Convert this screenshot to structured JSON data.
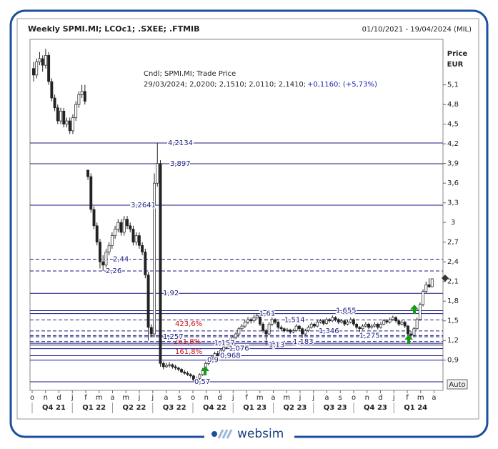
{
  "header": {
    "title": "Weekly SPMI.MI; LCOc1; .SXEE; .FTMIB",
    "range": "01/10/2021 - 19/04/2024 (MIL)"
  },
  "info": {
    "line1": "Cndl; SPMI.MI; Trade Price",
    "line2": "29/03/2024; 2,0200; 2,1510; 2,0110; 2,1410;",
    "change": "+0,1160; (+5,73%)"
  },
  "auto_button": "Auto",
  "footer": {
    "logo": "websim"
  },
  "chart_data": {
    "type": "candlestick",
    "ylabel": "Price",
    "yunit": "EUR",
    "categories": [
      "o",
      "n",
      "d",
      "j",
      "f",
      "m",
      "a",
      "m",
      "j",
      "j",
      "a",
      "s",
      "o",
      "n",
      "d",
      "j",
      "f",
      "m",
      "a",
      "m",
      "j",
      "j",
      "a",
      "s",
      "o",
      "n",
      "d",
      "j",
      "f",
      "m",
      "a"
    ],
    "quarters": [
      "Q4 21",
      "Q1 22",
      "Q2 22",
      "Q3 22",
      "Q4 22",
      "Q1 23",
      "Q2 23",
      "Q3 23",
      "Q4 23",
      "Q1 24"
    ],
    "ylim": [
      0.45,
      5.74
    ],
    "yticks": [
      {
        "value": 0.9,
        "label": "0,9"
      },
      {
        "value": 1.2,
        "label": "1,2"
      },
      {
        "value": 1.5,
        "label": "1,5"
      },
      {
        "value": 1.8,
        "label": "1,8"
      },
      {
        "value": 2.1,
        "label": "2,1"
      },
      {
        "value": 2.4,
        "label": "2,4"
      },
      {
        "value": 2.7,
        "label": "2,7"
      },
      3,
      {
        "value": 3.3,
        "label": "3,3"
      },
      {
        "value": 3.6,
        "label": "3,6"
      },
      {
        "value": 3.9,
        "label": "3,9"
      },
      {
        "value": 4.2,
        "label": "4,2"
      },
      {
        "value": 4.5,
        "label": "4,5"
      },
      {
        "value": 4.8,
        "label": "4,8"
      },
      {
        "value": 5.1,
        "label": "5,1"
      }
    ],
    "up_color": "#ffffff",
    "down_color": "#222222",
    "ohlc": [
      [
        5.35,
        5.45,
        5.15,
        5.25
      ],
      [
        5.25,
        5.5,
        5.2,
        5.45
      ],
      [
        5.45,
        5.6,
        5.4,
        5.5
      ],
      [
        5.5,
        5.55,
        5.3,
        5.4
      ],
      [
        5.4,
        5.65,
        5.35,
        5.55
      ],
      [
        5.55,
        5.6,
        5.1,
        5.15
      ],
      [
        5.15,
        5.2,
        4.85,
        4.9
      ],
      [
        4.9,
        4.95,
        4.7,
        4.75
      ],
      [
        4.75,
        4.8,
        4.5,
        4.55
      ],
      [
        4.55,
        4.75,
        4.5,
        4.7
      ],
      [
        4.7,
        4.75,
        4.45,
        4.5
      ],
      [
        4.5,
        4.6,
        4.45,
        4.55
      ],
      [
        4.55,
        4.6,
        4.35,
        4.4
      ],
      [
        4.4,
        4.65,
        4.35,
        4.6
      ],
      [
        4.6,
        4.85,
        4.55,
        4.8
      ],
      [
        4.8,
        5.0,
        4.75,
        4.95
      ],
      [
        4.95,
        5.1,
        4.9,
        5.0
      ],
      [
        5.0,
        5.1,
        4.8,
        4.85
      ],
      [
        3.8,
        3.8,
        3.65,
        3.7
      ],
      [
        3.7,
        3.75,
        3.15,
        3.2
      ],
      [
        3.2,
        3.25,
        2.9,
        2.95
      ],
      [
        2.95,
        3.0,
        2.65,
        2.7
      ],
      [
        2.7,
        2.75,
        2.3,
        2.4
      ],
      [
        2.4,
        2.5,
        2.26,
        2.35
      ],
      [
        2.35,
        2.6,
        2.3,
        2.55
      ],
      [
        2.55,
        2.7,
        2.5,
        2.65
      ],
      [
        2.65,
        2.85,
        2.6,
        2.8
      ],
      [
        2.8,
        2.95,
        2.75,
        2.9
      ],
      [
        2.9,
        3.05,
        2.85,
        3.0
      ],
      [
        3.0,
        3.05,
        2.8,
        2.85
      ],
      [
        2.85,
        3.1,
        2.8,
        3.05
      ],
      [
        3.05,
        3.1,
        2.9,
        2.95
      ],
      [
        2.95,
        3.0,
        2.85,
        2.9
      ],
      [
        2.9,
        2.95,
        2.65,
        2.7
      ],
      [
        2.7,
        2.85,
        2.65,
        2.8
      ],
      [
        2.8,
        2.85,
        2.6,
        2.65
      ],
      [
        2.65,
        2.7,
        2.5,
        2.55
      ],
      [
        2.55,
        2.6,
        2.15,
        2.2
      ],
      [
        2.2,
        2.25,
        1.2,
        1.4
      ],
      [
        1.4,
        1.45,
        1.25,
        1.3
      ],
      [
        1.3,
        3.75,
        1.25,
        3.6
      ],
      [
        3.6,
        4.21,
        3.55,
        3.9
      ],
      [
        3.9,
        3.95,
        0.8,
        0.85
      ],
      [
        0.85,
        0.88,
        0.76,
        0.8
      ],
      [
        0.8,
        0.86,
        0.78,
        0.82
      ],
      [
        0.82,
        0.87,
        0.79,
        0.83
      ],
      [
        0.83,
        0.85,
        0.77,
        0.8
      ],
      [
        0.8,
        0.83,
        0.75,
        0.78
      ],
      [
        0.78,
        0.8,
        0.73,
        0.76
      ],
      [
        0.76,
        0.78,
        0.7,
        0.72
      ],
      [
        0.72,
        0.75,
        0.68,
        0.7
      ],
      [
        0.7,
        0.73,
        0.66,
        0.68
      ],
      [
        0.68,
        0.7,
        0.63,
        0.66
      ],
      [
        0.66,
        0.68,
        0.57,
        0.6
      ],
      [
        0.6,
        0.65,
        0.58,
        0.62
      ],
      [
        0.62,
        0.7,
        0.6,
        0.68
      ],
      [
        0.68,
        0.78,
        0.66,
        0.75
      ],
      [
        0.75,
        0.88,
        0.73,
        0.85
      ],
      [
        0.85,
        0.93,
        0.82,
        0.9
      ],
      [
        0.9,
        0.98,
        0.87,
        0.95
      ],
      [
        0.95,
        1.03,
        0.92,
        1.0
      ],
      [
        1.0,
        1.04,
        0.95,
        0.98
      ],
      [
        0.98,
        1.08,
        0.96,
        1.05
      ],
      [
        1.05,
        1.13,
        1.02,
        1.1
      ],
      [
        1.1,
        1.18,
        1.07,
        1.15
      ],
      [
        1.15,
        1.23,
        1.12,
        1.2
      ],
      [
        1.2,
        1.28,
        1.17,
        1.25
      ],
      [
        1.25,
        1.33,
        1.22,
        1.3
      ],
      [
        1.3,
        1.41,
        1.27,
        1.38
      ],
      [
        1.38,
        1.45,
        1.35,
        1.42
      ],
      [
        1.42,
        1.51,
        1.39,
        1.48
      ],
      [
        1.48,
        1.56,
        1.45,
        1.52
      ],
      [
        1.52,
        1.55,
        1.46,
        1.5
      ],
      [
        1.5,
        1.59,
        1.47,
        1.55
      ],
      [
        1.55,
        1.61,
        1.52,
        1.58
      ],
      [
        1.58,
        1.6,
        1.42,
        1.45
      ],
      [
        1.45,
        1.48,
        1.32,
        1.35
      ],
      [
        1.35,
        1.38,
        1.13,
        1.3
      ],
      [
        1.3,
        1.48,
        1.28,
        1.45
      ],
      [
        1.45,
        1.55,
        1.42,
        1.52
      ],
      [
        1.52,
        1.54,
        1.45,
        1.48
      ],
      [
        1.48,
        1.5,
        1.37,
        1.4
      ],
      [
        1.4,
        1.43,
        1.35,
        1.38
      ],
      [
        1.38,
        1.4,
        1.32,
        1.35
      ],
      [
        1.35,
        1.39,
        1.33,
        1.36
      ],
      [
        1.36,
        1.38,
        1.3,
        1.33
      ],
      [
        1.33,
        1.38,
        1.31,
        1.35
      ],
      [
        1.35,
        1.45,
        1.33,
        1.42
      ],
      [
        1.42,
        1.44,
        1.35,
        1.38
      ],
      [
        1.38,
        1.4,
        1.18,
        1.3
      ],
      [
        1.3,
        1.38,
        1.28,
        1.35
      ],
      [
        1.35,
        1.43,
        1.33,
        1.4
      ],
      [
        1.4,
        1.48,
        1.38,
        1.45
      ],
      [
        1.45,
        1.47,
        1.39,
        1.42
      ],
      [
        1.42,
        1.51,
        1.4,
        1.48
      ],
      [
        1.48,
        1.53,
        1.46,
        1.5
      ],
      [
        1.5,
        1.52,
        1.43,
        1.46
      ],
      [
        1.46,
        1.55,
        1.44,
        1.52
      ],
      [
        1.52,
        1.54,
        1.47,
        1.5
      ],
      [
        1.5,
        1.58,
        1.48,
        1.55
      ],
      [
        1.55,
        1.57,
        1.49,
        1.52
      ],
      [
        1.52,
        1.54,
        1.45,
        1.48
      ],
      [
        1.48,
        1.53,
        1.46,
        1.5
      ],
      [
        1.5,
        1.52,
        1.42,
        1.45
      ],
      [
        1.45,
        1.51,
        1.43,
        1.48
      ],
      [
        1.48,
        1.55,
        1.46,
        1.52
      ],
      [
        1.52,
        1.54,
        1.42,
        1.45
      ],
      [
        1.45,
        1.47,
        1.37,
        1.4
      ],
      [
        1.4,
        1.42,
        1.28,
        1.38
      ],
      [
        1.38,
        1.45,
        1.36,
        1.42
      ],
      [
        1.42,
        1.48,
        1.4,
        1.45
      ],
      [
        1.45,
        1.47,
        1.37,
        1.4
      ],
      [
        1.4,
        1.45,
        1.38,
        1.42
      ],
      [
        1.42,
        1.48,
        1.4,
        1.45
      ],
      [
        1.45,
        1.47,
        1.37,
        1.4
      ],
      [
        1.4,
        1.48,
        1.38,
        1.45
      ],
      [
        1.45,
        1.53,
        1.43,
        1.5
      ],
      [
        1.5,
        1.52,
        1.45,
        1.48
      ],
      [
        1.48,
        1.55,
        1.46,
        1.52
      ],
      [
        1.52,
        1.58,
        1.5,
        1.55
      ],
      [
        1.55,
        1.57,
        1.47,
        1.5
      ],
      [
        1.5,
        1.52,
        1.42,
        1.45
      ],
      [
        1.45,
        1.51,
        1.43,
        1.48
      ],
      [
        1.48,
        1.5,
        1.39,
        1.42
      ],
      [
        1.42,
        1.44,
        1.26,
        1.3
      ],
      [
        1.3,
        1.34,
        1.24,
        1.28
      ],
      [
        1.28,
        1.41,
        1.26,
        1.38
      ],
      [
        1.38,
        1.55,
        1.36,
        1.52
      ],
      [
        1.52,
        1.78,
        1.5,
        1.75
      ],
      [
        1.75,
        1.98,
        1.72,
        1.95
      ],
      [
        1.95,
        2.1,
        1.92,
        2.05
      ],
      [
        2.05,
        2.15,
        2.0,
        2.02
      ],
      [
        2.02,
        2.15,
        2.01,
        2.14
      ]
    ],
    "level_color": "#1a1a80",
    "levels": [
      {
        "value": 4.2134,
        "label": "4,2134",
        "style": "solid"
      },
      {
        "value": 3.897,
        "label": "3,897",
        "style": "solid"
      },
      {
        "value": 3.2641,
        "label": "3,2641",
        "style": "solid"
      },
      {
        "value": 2.44,
        "label": "2,44",
        "style": "dashed"
      },
      {
        "value": 2.26,
        "label": "2,26",
        "style": "dashed"
      },
      {
        "value": 1.92,
        "label": "1,92",
        "style": "solid"
      },
      {
        "value": 1.655,
        "label": "1,655",
        "style": "solid"
      },
      {
        "value": 1.61,
        "label": "1,61",
        "style": "solid"
      },
      {
        "value": 1.514,
        "label": "1,514",
        "style": "dashed"
      },
      {
        "value": 1.346,
        "label": "1,346",
        "style": "dashed"
      },
      {
        "value": 1.275,
        "label": "1,275",
        "style": "dashed"
      },
      {
        "value": 1.257,
        "label": "1,257",
        "style": "dashed"
      },
      {
        "value": 1.183,
        "label": "1,183",
        "style": "dashed"
      },
      {
        "value": 1.157,
        "label": "1,157",
        "style": "solid"
      },
      {
        "value": 1.13,
        "label": "1,13",
        "style": "solid"
      },
      {
        "value": 1.076,
        "label": "1,076",
        "style": "solid"
      },
      {
        "value": 0.968,
        "label": "0,968",
        "style": "solid"
      },
      {
        "value": 0.9,
        "label": "0,9",
        "style": "solid"
      },
      {
        "value": 0.57,
        "label": "0,57",
        "style": "solid"
      }
    ],
    "fib_color": "#d01010",
    "fib_labels": [
      "423,6%",
      "261,8%",
      "161,8%"
    ]
  }
}
